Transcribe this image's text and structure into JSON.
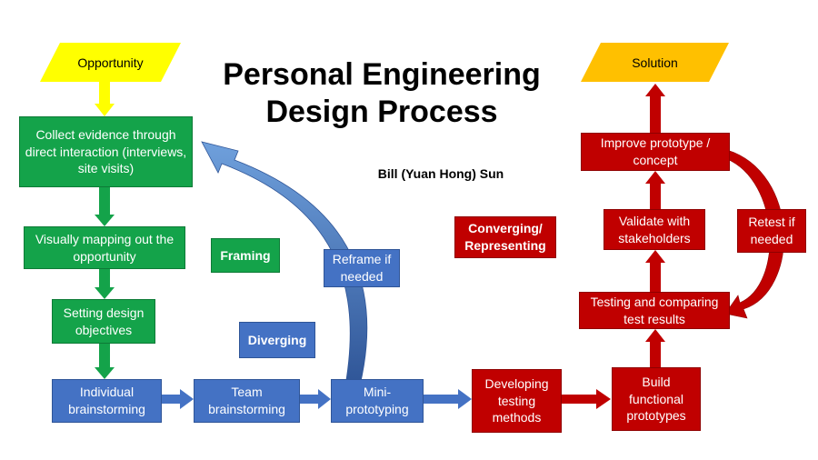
{
  "title": {
    "line1": "Personal Engineering",
    "line2": "Design Process"
  },
  "author": "Bill (Yuan Hong) Sun",
  "start": "Opportunity",
  "end": "Solution",
  "steps": {
    "collect": "Collect evidence through direct interaction (interviews, site visits)",
    "mapping": "Visually mapping out the opportunity",
    "objectives": "Setting design objectives",
    "individual": "Individual brainstorming",
    "team": "Team brainstorming",
    "mini": "Mini-prototyping",
    "reframe": "Reframe if needed",
    "developing": "Developing testing methods",
    "build": "Build functional prototypes",
    "testing": "Testing and comparing test results",
    "validate": "Validate with stakeholders",
    "improve": "Improve prototype / concept",
    "retest": "Retest if needed"
  },
  "phases": {
    "framing": "Framing",
    "diverging": "Diverging",
    "converging": "Converging/ Representing"
  },
  "colors": {
    "start": "#ffff00",
    "end": "#ffc000",
    "green": "#14a34a",
    "blue": "#4472c4",
    "red": "#c00000"
  }
}
